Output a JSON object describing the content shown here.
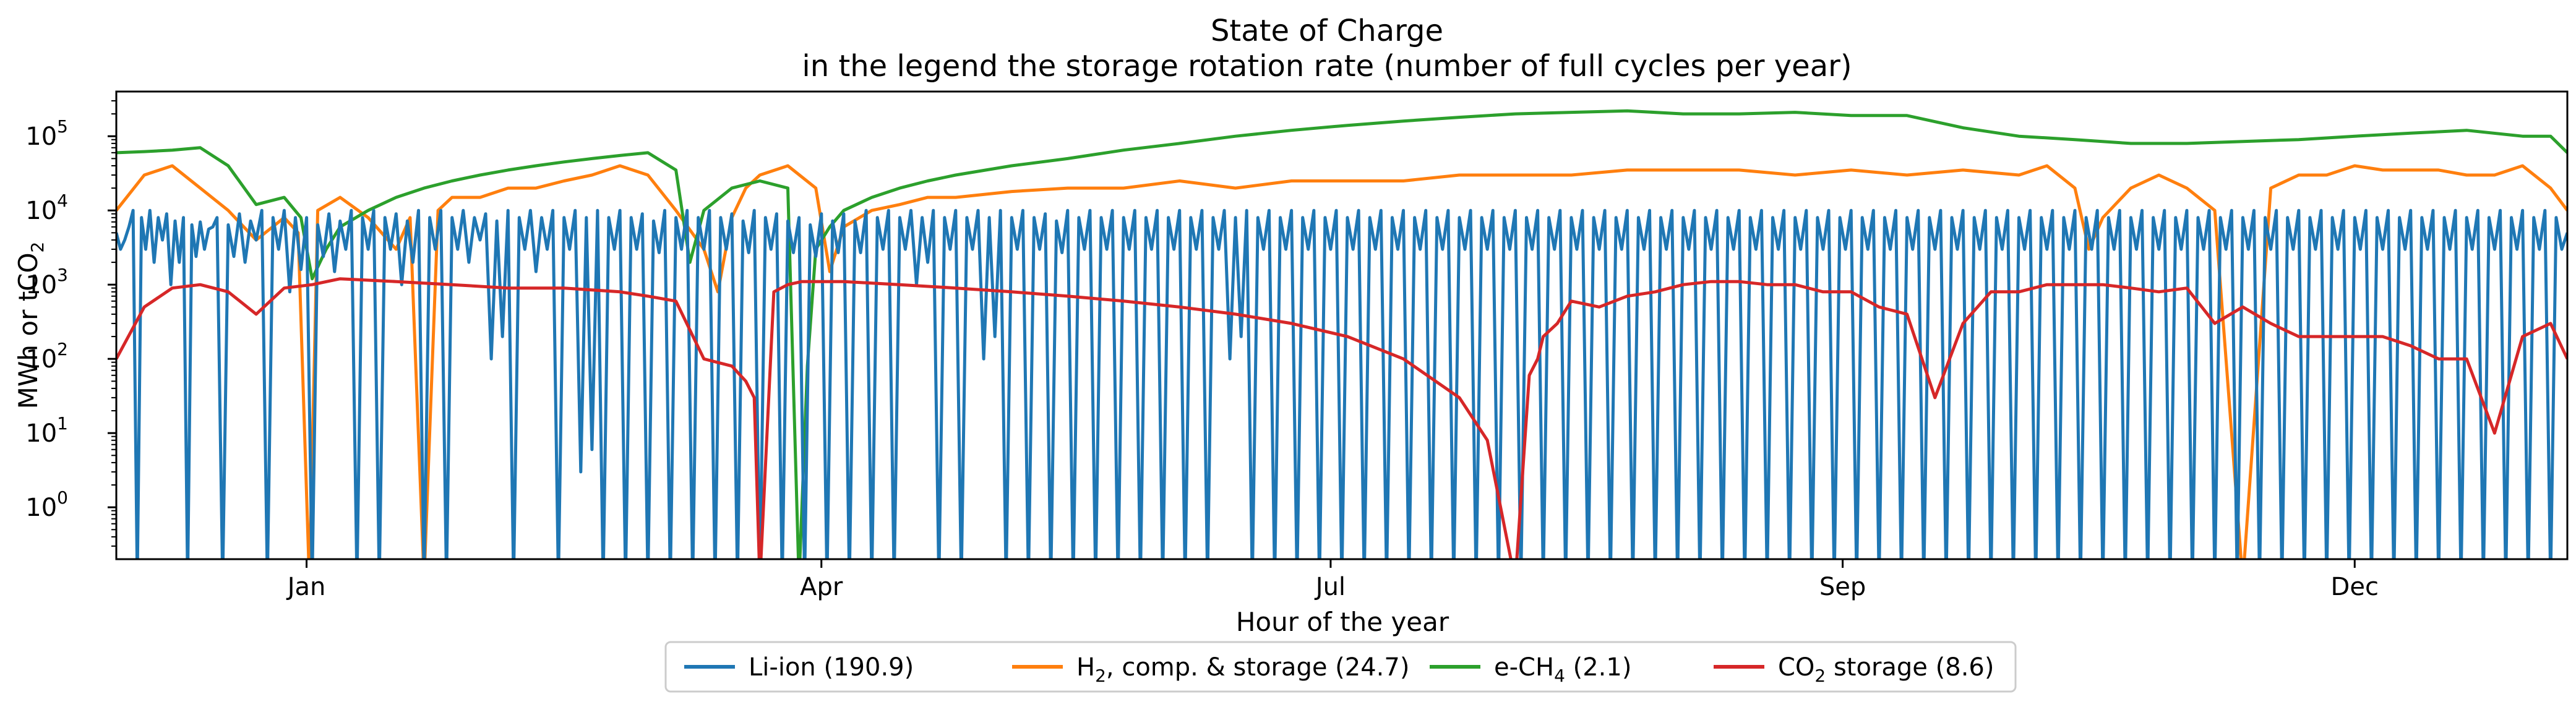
{
  "chart_data": {
    "type": "line",
    "title": "State of Charge",
    "subtitle": "in the legend the storage rotation rate (number of full cycles per year)",
    "xlabel": "Hour of the year",
    "ylabel": {
      "main": "MWh or tCO",
      "sub": "2"
    },
    "yscale": "log",
    "ylim": [
      0.2,
      400000
    ],
    "xlim": [
      0,
      8760
    ],
    "grid": false,
    "legend_placement": "bottom-center",
    "x_ticks": [
      {
        "x": 680,
        "label": "Jan"
      },
      {
        "x": 2520,
        "label": "Apr"
      },
      {
        "x": 4340,
        "label": "Jul"
      },
      {
        "x": 6170,
        "label": "Sep"
      },
      {
        "x": 8000,
        "label": "Dec"
      }
    ],
    "y_ticks": [
      {
        "value": 1,
        "base": "10",
        "exp": "0"
      },
      {
        "value": 10,
        "base": "10",
        "exp": "1"
      },
      {
        "value": 100,
        "base": "10",
        "exp": "2"
      },
      {
        "value": 1000,
        "base": "10",
        "exp": "3"
      },
      {
        "value": 10000,
        "base": "10",
        "exp": "4"
      },
      {
        "value": 100000,
        "base": "10",
        "exp": "5"
      }
    ],
    "series": [
      {
        "name": "Li-ion (190.9)",
        "legend_parts": {
          "pre": "Li-ion (190.9)",
          "sub": "",
          "post": ""
        },
        "color": "#1f77b4",
        "kind": "cycling",
        "x": [
          0,
          60,
          120,
          180,
          240,
          300,
          360,
          440,
          520,
          600,
          680,
          760,
          840,
          920,
          1000,
          1080,
          1160,
          1240,
          1320,
          1400,
          1480,
          1560,
          1640,
          1720,
          1800,
          1880,
          1960,
          2040,
          2120,
          2200,
          2280,
          2360,
          2440,
          2520,
          2600,
          2680,
          2760,
          2840,
          2920,
          3000,
          3080,
          3160,
          3240,
          3320,
          3400,
          3480,
          3560,
          3640,
          3720,
          3800,
          3880,
          3960,
          4040,
          4120,
          4200,
          4280,
          4360,
          4440,
          4520,
          4600,
          4680,
          4760,
          4840,
          4920,
          5000,
          5080,
          5160,
          5240,
          5320,
          5400,
          5480,
          5560,
          5640,
          5720,
          5800,
          5880,
          5960,
          6040,
          6120,
          6200,
          6280,
          6360,
          6440,
          6520,
          6600,
          6680,
          6760,
          6840,
          6920,
          7000,
          7080,
          7160,
          7240,
          7320,
          7400,
          7480,
          7560,
          7640,
          7720,
          7800,
          7880,
          7960,
          8040,
          8120,
          8200,
          8280,
          8360,
          8440,
          8520,
          8600,
          8680,
          8760
        ],
        "peak": [
          5000,
          10000,
          10000,
          9000,
          8000,
          7000,
          8000,
          9000,
          10000,
          10000,
          8000,
          9000,
          10000,
          10000,
          9000,
          10000,
          10000,
          10000,
          9000,
          10000,
          10000,
          10000,
          10000,
          10000,
          10000,
          9000,
          10000,
          10000,
          10000,
          9000,
          10000,
          9000,
          8000,
          9000,
          9000,
          10000,
          10000,
          10000,
          10000,
          10000,
          10000,
          10000,
          10000,
          9000,
          10000,
          10000,
          10000,
          10000,
          10000,
          10000,
          10000,
          10000,
          10000,
          10000,
          10000,
          10000,
          10000,
          10000,
          10000,
          10000,
          10000,
          10000,
          10000,
          10000,
          10000,
          10000,
          10000,
          10000,
          10000,
          10000,
          10000,
          10000,
          10000,
          10000,
          10000,
          10000,
          10000,
          10000,
          10000,
          10000,
          10000,
          10000,
          10000,
          10000,
          10000,
          10000,
          10000,
          10000,
          10000,
          10000,
          10000,
          10000,
          10000,
          10000,
          10000,
          10000,
          10000,
          10000,
          10000,
          10000,
          10000,
          10000,
          10000,
          10000,
          10000,
          10000,
          10000,
          10000,
          10000,
          10000,
          10000,
          5000
        ],
        "trough": [
          3000,
          0.1,
          2000,
          1000,
          0.1,
          3000,
          0.1,
          2000,
          0.1,
          800,
          0.1,
          1500,
          0.1,
          0.1,
          1000,
          0.1,
          0.1,
          2000,
          100,
          0.1,
          1500,
          0.1,
          3,
          0.1,
          0.1,
          0.1,
          0.1,
          0.1,
          0.1,
          0.1,
          0.1,
          0.1,
          0.1,
          0.1,
          0.1,
          0.1,
          0.1,
          1000,
          0.1,
          0.1,
          100,
          0.1,
          0.1,
          0.1,
          0.1,
          0.1,
          0.1,
          0.1,
          0.1,
          0.1,
          0.1,
          100,
          0.1,
          0.1,
          0.1,
          0.1,
          0.1,
          0.1,
          0.1,
          0.1,
          0.1,
          0.1,
          0.1,
          0.1,
          0.1,
          0.1,
          0.1,
          0.1,
          0.1,
          0.1,
          0.1,
          0.1,
          0.1,
          0.1,
          0.1,
          0.1,
          0.1,
          0.1,
          0.1,
          0.1,
          0.1,
          0.1,
          0.1,
          0.1,
          0.1,
          0.1,
          0.1,
          0.1,
          0.1,
          0.1,
          0.1,
          0.1,
          0.1,
          0.1,
          0.1,
          0.1,
          0.1,
          0.1,
          0.1,
          0.1,
          0.1,
          0.1,
          0.1,
          0.1,
          0.1,
          0.1,
          0.1,
          0.1,
          0.1,
          0.1,
          0.1,
          3000
        ]
      },
      {
        "name": "H2, comp. & storage (24.7)",
        "legend_parts": {
          "pre": "H",
          "sub": "2",
          "post": ", comp. & storage (24.7)"
        },
        "color": "#ff7f0e",
        "kind": "line",
        "x": [
          0,
          100,
          200,
          300,
          400,
          500,
          600,
          650,
          690,
          720,
          800,
          900,
          1000,
          1050,
          1100,
          1150,
          1200,
          1300,
          1400,
          1500,
          1600,
          1700,
          1800,
          1900,
          2000,
          2100,
          2150,
          2200,
          2250,
          2300,
          2400,
          2500,
          2550,
          2600,
          2700,
          2800,
          2900,
          3000,
          3200,
          3400,
          3600,
          3800,
          4000,
          4200,
          4400,
          4600,
          4800,
          5000,
          5200,
          5400,
          5600,
          5800,
          6000,
          6200,
          6400,
          6600,
          6800,
          6900,
          7000,
          7050,
          7100,
          7200,
          7300,
          7400,
          7500,
          7600,
          7700,
          7800,
          7900,
          8000,
          8100,
          8200,
          8300,
          8400,
          8500,
          8600,
          8700,
          8760
        ],
        "y": [
          10000,
          30000,
          40000,
          20000,
          10000,
          4000,
          8000,
          5000,
          0.1,
          10000,
          15000,
          8000,
          3000,
          8000,
          0.1,
          10000,
          15000,
          15000,
          20000,
          20000,
          25000,
          30000,
          40000,
          30000,
          10000,
          3000,
          800,
          8000,
          20000,
          30000,
          40000,
          20000,
          1500,
          6000,
          10000,
          12000,
          15000,
          15000,
          18000,
          20000,
          20000,
          25000,
          20000,
          25000,
          25000,
          25000,
          30000,
          30000,
          30000,
          35000,
          35000,
          35000,
          30000,
          35000,
          30000,
          35000,
          30000,
          40000,
          20000,
          3000,
          8000,
          20000,
          30000,
          20000,
          10000,
          0.1,
          20000,
          30000,
          30000,
          40000,
          35000,
          35000,
          35000,
          30000,
          30000,
          40000,
          20000,
          10000
        ]
      },
      {
        "name": "e-CH4 (2.1)",
        "legend_parts": {
          "pre": "e-CH",
          "sub": "4",
          "post": " (2.1)"
        },
        "color": "#2ca02c",
        "kind": "line",
        "x": [
          0,
          100,
          200,
          300,
          400,
          500,
          600,
          660,
          700,
          750,
          800,
          900,
          1000,
          1100,
          1200,
          1300,
          1400,
          1500,
          1600,
          1700,
          1800,
          1900,
          2000,
          2050,
          2100,
          2200,
          2300,
          2400,
          2440,
          2470,
          2500,
          2550,
          2600,
          2700,
          2800,
          2900,
          3000,
          3200,
          3400,
          3600,
          3800,
          4000,
          4200,
          4400,
          4600,
          4800,
          5000,
          5200,
          5400,
          5600,
          5800,
          6000,
          6200,
          6400,
          6600,
          6800,
          7000,
          7200,
          7400,
          7600,
          7800,
          8000,
          8200,
          8400,
          8600,
          8700,
          8760
        ],
        "y": [
          60000,
          62000,
          65000,
          70000,
          40000,
          12000,
          15000,
          8000,
          1200,
          3000,
          6000,
          10000,
          15000,
          20000,
          25000,
          30000,
          35000,
          40000,
          45000,
          50000,
          55000,
          60000,
          35000,
          2000,
          10000,
          20000,
          25000,
          20000,
          0.1,
          80,
          3000,
          6000,
          10000,
          15000,
          20000,
          25000,
          30000,
          40000,
          50000,
          65000,
          80000,
          100000,
          120000,
          140000,
          160000,
          180000,
          200000,
          210000,
          220000,
          200000,
          200000,
          210000,
          190000,
          190000,
          130000,
          100000,
          90000,
          80000,
          80000,
          85000,
          90000,
          100000,
          110000,
          120000,
          100000,
          100000,
          60000
        ]
      },
      {
        "name": "CO2 storage (8.6)",
        "legend_parts": {
          "pre": "CO",
          "sub": "2",
          "post": " storage (8.6)"
        },
        "color": "#d62728",
        "kind": "line",
        "x": [
          0,
          100,
          200,
          300,
          400,
          500,
          600,
          700,
          800,
          1000,
          1200,
          1400,
          1600,
          1800,
          1900,
          2000,
          2100,
          2200,
          2250,
          2280,
          2300,
          2350,
          2400,
          2450,
          2500,
          2600,
          2800,
          3000,
          3200,
          3400,
          3600,
          3800,
          4000,
          4200,
          4400,
          4600,
          4800,
          4900,
          5000,
          5050,
          5080,
          5100,
          5150,
          5200,
          5300,
          5400,
          5500,
          5600,
          5700,
          5800,
          5900,
          6000,
          6100,
          6200,
          6300,
          6400,
          6500,
          6600,
          6700,
          6800,
          6900,
          7000,
          7100,
          7200,
          7300,
          7400,
          7500,
          7600,
          7700,
          7800,
          7900,
          8000,
          8100,
          8200,
          8300,
          8400,
          8500,
          8600,
          8700,
          8760
        ],
        "y": [
          100,
          500,
          900,
          1000,
          800,
          400,
          900,
          1000,
          1200,
          1100,
          1000,
          900,
          900,
          800,
          700,
          600,
          100,
          80,
          50,
          30,
          0.1,
          800,
          1000,
          1100,
          1100,
          1100,
          1000,
          900,
          800,
          700,
          600,
          500,
          400,
          300,
          200,
          100,
          30,
          8,
          0.1,
          60,
          100,
          200,
          300,
          600,
          500,
          700,
          800,
          1000,
          1100,
          1100,
          1000,
          1000,
          800,
          800,
          500,
          400,
          30,
          300,
          800,
          800,
          1000,
          1000,
          1000,
          900,
          800,
          900,
          300,
          500,
          300,
          200,
          200,
          200,
          200,
          150,
          100,
          100,
          10,
          200,
          300,
          100
        ]
      }
    ]
  }
}
